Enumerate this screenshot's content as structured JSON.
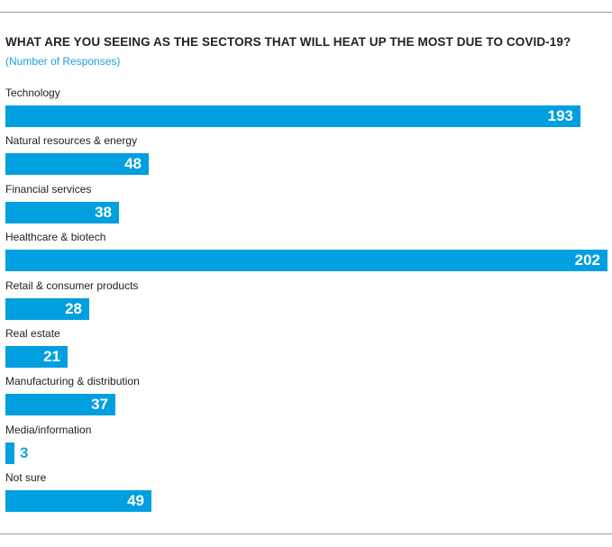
{
  "chart_data": {
    "type": "bar",
    "orientation": "horizontal",
    "title": "WHAT ARE YOU SEEING AS THE SECTORS THAT WILL HEAT UP THE MOST DUE TO COVID-19?",
    "subtitle": "(Number of Responses)",
    "categories": [
      "Technology",
      "Natural resources & energy",
      "Financial services",
      "Healthcare & biotech",
      "Retail & consumer products",
      "Real estate",
      "Manufacturing & distribution",
      "Media/information",
      "Not sure"
    ],
    "values": [
      193,
      48,
      38,
      202,
      28,
      21,
      37,
      3,
      49
    ],
    "value_labels": [
      "193",
      "48",
      "38",
      "202",
      "28",
      "21",
      "37",
      "3",
      "49"
    ],
    "xlim": [
      0,
      202
    ],
    "bar_color": "#009fdf",
    "label_color": "#1aa2db",
    "grid": false,
    "legend": "none"
  },
  "colors": {
    "rule": "#9b9b9b",
    "title": "#222222"
  }
}
